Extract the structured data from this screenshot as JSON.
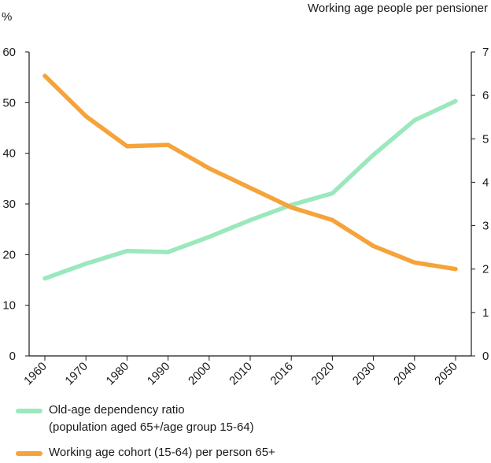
{
  "chart_data": {
    "type": "line",
    "title": "",
    "x": [
      "1960",
      "1970",
      "1980",
      "1990",
      "2000",
      "2010",
      "2016",
      "2020",
      "2030",
      "2040",
      "2050"
    ],
    "left_axis": {
      "label": "%",
      "ylim": [
        0,
        60
      ],
      "ticks": [
        "0",
        "10",
        "20",
        "30",
        "40",
        "50",
        "60"
      ]
    },
    "right_axis": {
      "label": "Working age people per pensioner",
      "ylim": [
        0,
        7
      ],
      "ticks": [
        "0",
        "1",
        "2",
        "3",
        "4",
        "5",
        "6",
        "7"
      ]
    },
    "grid": false,
    "legend_position": "bottom",
    "series": [
      {
        "name": "Old-age dependency ratio",
        "name_line2": "(population aged 65+/age group 15-64)",
        "axis": "left",
        "color": "#9be8bd",
        "values": [
          15.3,
          18.2,
          20.7,
          20.5,
          23.5,
          26.8,
          29.8,
          32.1,
          39.7,
          46.5,
          50.3
        ]
      },
      {
        "name": "Working age cohort (15-64) per person 65+",
        "axis": "right",
        "color": "#f5a33a",
        "values": [
          6.45,
          5.52,
          4.83,
          4.86,
          4.32,
          3.87,
          3.42,
          3.13,
          2.53,
          2.15,
          2.0
        ]
      }
    ]
  }
}
